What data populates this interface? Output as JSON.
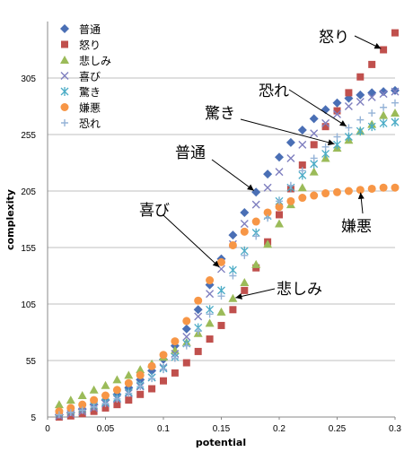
{
  "chart_data": {
    "type": "scatter",
    "xlabel": "potential",
    "ylabel": "complexity",
    "xlim": [
      0,
      0.3
    ],
    "ylim": [
      5,
      355
    ],
    "x_ticks": [
      "0",
      "0.05",
      "0.1",
      "0.15",
      "0.2",
      "0.25",
      "0.3"
    ],
    "y_ticks": [
      "5",
      "55",
      "105",
      "155",
      "205",
      "255",
      "305"
    ],
    "grid": "horizontal",
    "legend_position": "top-left",
    "x": [
      0.01,
      0.02,
      0.03,
      0.04,
      0.05,
      0.06,
      0.07,
      0.08,
      0.09,
      0.1,
      0.11,
      0.12,
      0.13,
      0.14,
      0.15,
      0.16,
      0.17,
      0.18,
      0.19,
      0.2,
      0.21,
      0.22,
      0.23,
      0.24,
      0.25,
      0.26,
      0.27,
      0.28,
      0.29,
      0.3
    ],
    "series": [
      {
        "name": "普通",
        "color": "#4a6fb5",
        "marker": "diamond",
        "values": [
          7,
          9,
          12,
          16,
          20,
          25,
          31,
          38,
          46,
          56,
          68,
          83,
          100,
          122,
          145,
          166,
          186,
          204,
          220,
          235,
          248,
          259,
          269,
          277,
          283,
          287,
          290,
          292,
          293,
          294
        ]
      },
      {
        "name": "怒り",
        "color": "#c0504d",
        "marker": "square",
        "values": [
          5,
          6,
          8,
          10,
          13,
          16,
          20,
          25,
          30,
          37,
          44,
          53,
          63,
          74,
          86,
          100,
          117,
          137,
          160,
          184,
          207,
          228,
          246,
          262,
          276,
          292,
          306,
          317,
          330,
          345
        ]
      },
      {
        "name": "悲しみ",
        "color": "#9bbb59",
        "marker": "triangle",
        "values": [
          16,
          20,
          24,
          29,
          33,
          38,
          42,
          47,
          52,
          58,
          64,
          71,
          79,
          88,
          98,
          110,
          124,
          140,
          158,
          176,
          193,
          208,
          222,
          234,
          243,
          250,
          258,
          264,
          272,
          274
        ]
      },
      {
        "name": "喜び",
        "color": "#7f7fbf",
        "marker": "x",
        "values": [
          6,
          8,
          10,
          13,
          17,
          21,
          26,
          32,
          40,
          49,
          61,
          76,
          94,
          114,
          136,
          158,
          176,
          193,
          208,
          222,
          234,
          246,
          256,
          265,
          273,
          280,
          284,
          288,
          291,
          293
        ]
      },
      {
        "name": "驚き",
        "color": "#4bacc6",
        "marker": "asterisk",
        "values": [
          8,
          10,
          12,
          15,
          18,
          22,
          27,
          33,
          40,
          48,
          58,
          70,
          84,
          100,
          117,
          135,
          152,
          168,
          183,
          196,
          208,
          219,
          229,
          238,
          246,
          253,
          258,
          262,
          265,
          266
        ]
      },
      {
        "name": "嫌悪",
        "color": "#f79646",
        "marker": "circle",
        "values": [
          10,
          13,
          16,
          20,
          24,
          29,
          35,
          42,
          50,
          60,
          72,
          90,
          108,
          126,
          142,
          157,
          169,
          178,
          186,
          191,
          196,
          199,
          201,
          203,
          204,
          205,
          206,
          207,
          208,
          208
        ]
      },
      {
        "name": "恐れ",
        "color": "#95b3d7",
        "marker": "plus",
        "values": [
          7,
          9,
          11,
          14,
          17,
          21,
          26,
          32,
          39,
          47,
          57,
          68,
          81,
          96,
          112,
          130,
          148,
          165,
          181,
          196,
          210,
          223,
          234,
          244,
          253,
          261,
          268,
          274,
          279,
          283
        ]
      }
    ],
    "annotations": [
      {
        "label": "怒り",
        "series": "怒り",
        "x": 0.29
      },
      {
        "label": "恐れ",
        "series": "恐れ",
        "x": 0.26
      },
      {
        "label": "驚き",
        "series": "驚き",
        "x": 0.25
      },
      {
        "label": "普通",
        "series": "普通",
        "x": 0.18
      },
      {
        "label": "喜び",
        "series": "喜び",
        "x": 0.15
      },
      {
        "label": "悲しみ",
        "series": "悲しみ",
        "x": 0.16
      },
      {
        "label": "嫌悪",
        "series": "嫌悪",
        "x": 0.27
      }
    ]
  }
}
